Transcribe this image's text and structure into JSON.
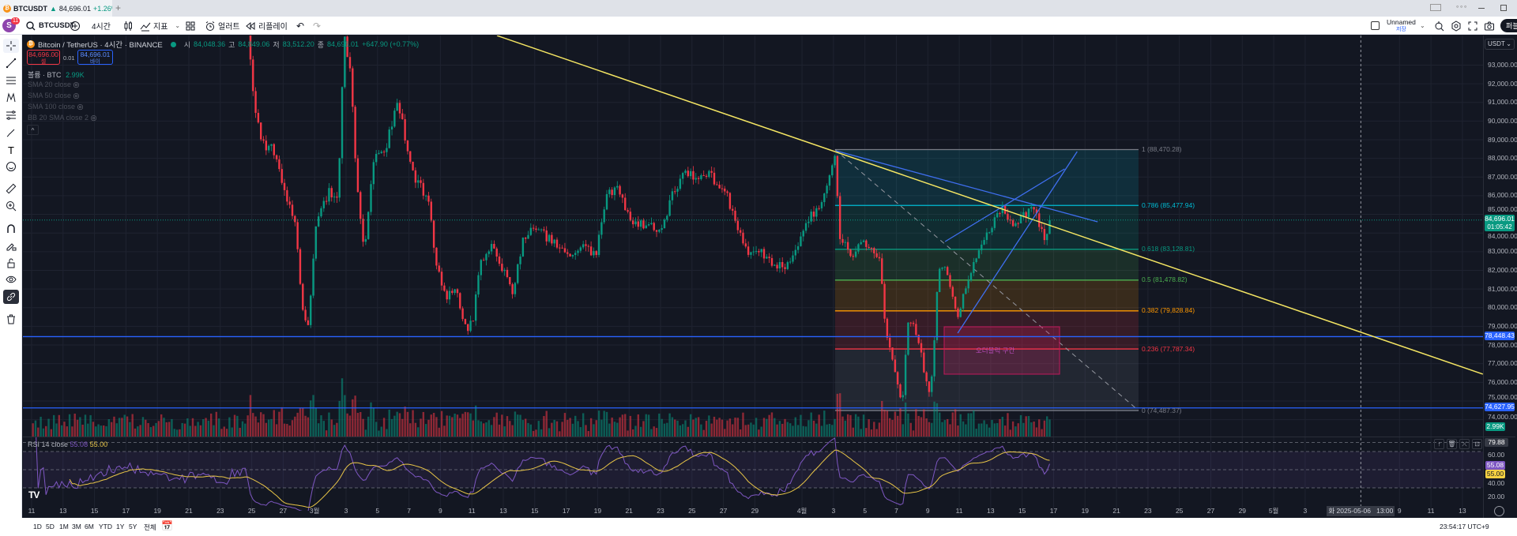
{
  "browser_tab": {
    "symbol": "BTCUSDT",
    "arrow": "▲",
    "price": "84,696.01",
    "change": "+1.26%",
    "new_tab": "+"
  },
  "toolbar": {
    "avatar_letter": "S",
    "notification_count": "11",
    "symbol": "BTCUSDT",
    "interval": "4시간",
    "indicators": "지표",
    "alert": "얼러트",
    "replay": "리플레이",
    "layout_name": "Unnamed",
    "layout_status": "저장",
    "publish": "퍼블"
  },
  "legend": {
    "title": "Bitcoin / TetherUS · 4시간 · BINANCE",
    "open_label": "시",
    "open": "84,048.36",
    "high_label": "고",
    "high": "84,849.06",
    "low_label": "저",
    "low": "83,512.20",
    "close_label": "종",
    "close": "84,696.01",
    "change": "+647.90 (+0.77%)",
    "sell_price": "84,696.00",
    "sell_label": "셀",
    "spread": "0.01",
    "buy_price": "84,696.01",
    "buy_label": "바이",
    "volume_label": "볼륨 · BTC",
    "volume_value": "2.99K",
    "indicators": [
      "SMA 20 close",
      "SMA 50 close",
      "SMA 100 close",
      "BB 20 SMA close 2"
    ]
  },
  "price_axis": {
    "currency": "USDT",
    "labels": [
      "93,000.00",
      "92,000.00",
      "91,000.00",
      "90,000.00",
      "89,000.00",
      "88,000.00",
      "87,000.00",
      "86,000.00",
      "85,000.00",
      "84,000.00",
      "83,000.00",
      "82,000.00",
      "81,000.00",
      "80,000.00",
      "79,000.00",
      "78,000.00",
      "77,000.00",
      "76,000.00",
      "75,000.00",
      "74,000.00"
    ],
    "current_price": "84,696.01",
    "countdown": "01:05:42",
    "hlines": [
      "78,448.43",
      "74,627.95"
    ],
    "volume_badge": "2.99K"
  },
  "fib": [
    {
      "ratio": "1",
      "price": "88,470.28",
      "color": "#787b86",
      "fill": "#787b86"
    },
    {
      "ratio": "0.786",
      "price": "85,477.94",
      "color": "#00bcd4",
      "fill": "#00bcd4"
    },
    {
      "ratio": "0.618",
      "price": "83,128.81",
      "color": "#089981",
      "fill": "#089981"
    },
    {
      "ratio": "0.5",
      "price": "81,478.82",
      "color": "#4caf50",
      "fill": "#4caf50"
    },
    {
      "ratio": "0.382",
      "price": "79,828.84",
      "color": "#ff9800",
      "fill": "#ff9800"
    },
    {
      "ratio": "0.236",
      "price": "77,787.34",
      "color": "#f23645",
      "fill": "#f23645"
    },
    {
      "ratio": "0",
      "price": "74,487.37",
      "color": "#787b86",
      "fill": "#787b86"
    }
  ],
  "annotation": {
    "text": "오더블럭 구간"
  },
  "rsi": {
    "label": "RSI 14 close",
    "value": "55.08",
    "ma": "55.00",
    "axis": [
      "60.00",
      "40.00",
      "20.00"
    ],
    "crosshair_value": "79.88"
  },
  "time_axis": {
    "labels": [
      [
        "11",
        0
      ],
      [
        "13",
        2
      ],
      [
        "15",
        4
      ],
      [
        "17",
        6
      ],
      [
        "19",
        8
      ],
      [
        "21",
        10
      ],
      [
        "23",
        12
      ],
      [
        "25",
        14
      ],
      [
        "27",
        16
      ],
      [
        "3월",
        18
      ],
      [
        "3",
        20
      ],
      [
        "5",
        22
      ],
      [
        "7",
        24
      ],
      [
        "9",
        26
      ],
      [
        "11",
        28
      ],
      [
        "13",
        30
      ],
      [
        "15",
        32
      ],
      [
        "17",
        34
      ],
      [
        "19",
        36
      ],
      [
        "21",
        38
      ],
      [
        "23",
        40
      ],
      [
        "25",
        42
      ],
      [
        "27",
        44
      ],
      [
        "29",
        46
      ],
      [
        "4월",
        49
      ],
      [
        "3",
        51
      ],
      [
        "5",
        53
      ],
      [
        "7",
        55
      ],
      [
        "9",
        57
      ],
      [
        "11",
        59
      ],
      [
        "13",
        61
      ],
      [
        "15",
        63
      ],
      [
        "17",
        65
      ],
      [
        "19",
        67
      ],
      [
        "21",
        69
      ],
      [
        "23",
        71
      ],
      [
        "25",
        73
      ],
      [
        "27",
        75
      ],
      [
        "29",
        77
      ],
      [
        "5월",
        79
      ],
      [
        "3",
        81
      ],
      [
        "9",
        87
      ],
      [
        "11",
        89
      ],
      [
        "13",
        91
      ]
    ],
    "cursor": "화 2025-05-06   13:00",
    "cursor_day": 84.54
  },
  "bottom_bar": {
    "ranges": [
      "1D",
      "5D",
      "1M",
      "3M",
      "6M",
      "YTD",
      "1Y",
      "5Y",
      "전체"
    ],
    "clock": "23:54:17 UTC+9"
  },
  "colors": {
    "up": "#089981",
    "down": "#f23645",
    "bg": "#131722",
    "trend": "#f5e663",
    "blue": "#2962ff",
    "rsi": "#7e57c2",
    "rsi_ma": "#e8c547"
  },
  "chart_data": {
    "type": "candlestick",
    "interval_hours": 4,
    "start": "2025-02-11",
    "last_close": 84696.01,
    "close_path": [
      [
        0,
        97500
      ],
      [
        3,
        96500
      ],
      [
        6,
        97200
      ],
      [
        9,
        96300
      ],
      [
        12,
        95800
      ],
      [
        13.6,
        96000
      ],
      [
        14,
        91500
      ],
      [
        14.5,
        88800
      ],
      [
        15.3,
        88500
      ],
      [
        16,
        86200
      ],
      [
        16.7,
        84300
      ],
      [
        17.2,
        79500
      ],
      [
        17.5,
        79000
      ],
      [
        18,
        84500
      ],
      [
        18.8,
        86200
      ],
      [
        19.4,
        86000
      ],
      [
        19.8,
        94500
      ],
      [
        20.2,
        92500
      ],
      [
        20.6,
        86500
      ],
      [
        21.1,
        83000
      ],
      [
        21.6,
        87800
      ],
      [
        22.4,
        88500
      ],
      [
        23.2,
        91000
      ],
      [
        23.6,
        89500
      ],
      [
        24.2,
        87000
      ],
      [
        24.8,
        86300
      ],
      [
        25.2,
        85800
      ],
      [
        25.6,
        82500
      ],
      [
        26.3,
        80500
      ],
      [
        26.9,
        81000
      ],
      [
        27.6,
        78700
      ],
      [
        28,
        79500
      ],
      [
        28.5,
        82500
      ],
      [
        29.2,
        83500
      ],
      [
        30,
        81800
      ],
      [
        30.5,
        80700
      ],
      [
        31.2,
        83800
      ],
      [
        32,
        84200
      ],
      [
        33,
        83600
      ],
      [
        34,
        82800
      ],
      [
        35,
        83200
      ],
      [
        35.8,
        82800
      ],
      [
        36.5,
        86200
      ],
      [
        37.2,
        86400
      ],
      [
        38,
        84600
      ],
      [
        39,
        84400
      ],
      [
        40,
        84200
      ],
      [
        40.7,
        86200
      ],
      [
        41.5,
        87300
      ],
      [
        42.2,
        86800
      ],
      [
        43,
        87100
      ],
      [
        44,
        86400
      ],
      [
        44.7,
        84600
      ],
      [
        45.5,
        82800
      ],
      [
        46.3,
        83000
      ],
      [
        47.2,
        82300
      ],
      [
        48,
        82300
      ],
      [
        48.6,
        83200
      ],
      [
        49.3,
        84800
      ],
      [
        50,
        85200
      ],
      [
        50.8,
        87600
      ],
      [
        51,
        88200
      ],
      [
        51.3,
        83800
      ],
      [
        52,
        82800
      ],
      [
        53,
        83500
      ],
      [
        53.8,
        82800
      ],
      [
        54.3,
        78500
      ],
      [
        54.8,
        76500
      ],
      [
        55.3,
        75000
      ],
      [
        55.6,
        79000
      ],
      [
        56,
        79200
      ],
      [
        56.6,
        77000
      ],
      [
        57.0,
        75500
      ],
      [
        57.2,
        76500
      ],
      [
        57.6,
        82000
      ],
      [
        58.1,
        82200
      ],
      [
        58.8,
        79500
      ],
      [
        59.5,
        81500
      ],
      [
        60.2,
        83000
      ],
      [
        61,
        84500
      ],
      [
        61.6,
        85400
      ],
      [
        62.4,
        84200
      ],
      [
        63.1,
        85000
      ],
      [
        63.6,
        85500
      ],
      [
        64,
        84300
      ],
      [
        64.4,
        83600
      ],
      [
        64.8,
        84696
      ]
    ],
    "drawings": {
      "trendline": [
        [
          29.6,
          94580
        ],
        [
          92.3,
          76440
        ]
      ],
      "blue_upper": [
        [
          51.15,
          88410
        ],
        [
          67.8,
          84600
        ]
      ],
      "blue_a": [
        [
          58.1,
          83543
        ],
        [
          65.7,
          87435
        ]
      ],
      "blue_b": [
        [
          58.9,
          78636
        ],
        [
          66.5,
          88365
        ]
      ],
      "fib_range": [
        51.1,
        70.4
      ],
      "order_block": [
        [
          58.04,
          78975
        ],
        [
          65.38,
          76437
        ]
      ]
    }
  }
}
